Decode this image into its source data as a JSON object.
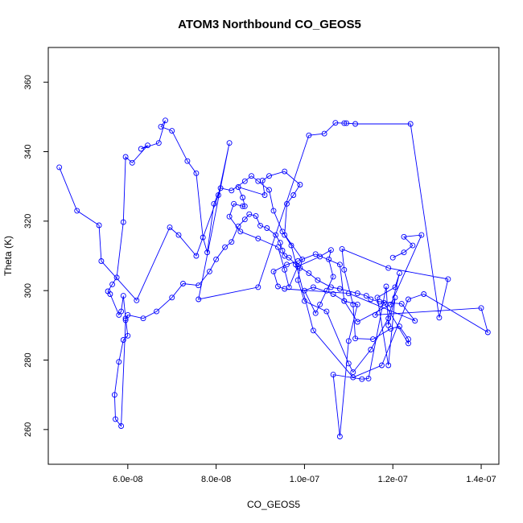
{
  "chart_data": {
    "type": "line",
    "title": "ATOM3 Northbound CO_GEOS5",
    "xlabel": "CO_GEOS5",
    "ylabel": "Theta (K)",
    "xlim": [
      4.2e-08,
      1.44e-07
    ],
    "ylim": [
      250,
      370
    ],
    "xticks": [
      6e-08,
      8e-08,
      1e-07,
      1.2e-07,
      1.4e-07
    ],
    "xtick_labels": [
      "6.0e-08",
      "8.0e-08",
      "1.0e-07",
      "1.2e-07",
      "1.4e-07"
    ],
    "yticks": [
      260,
      280,
      300,
      320,
      340,
      360
    ],
    "ytick_labels": [
      "260",
      "280",
      "300",
      "320",
      "340",
      "360"
    ],
    "grid": false,
    "legend": "none",
    "series": [
      {
        "color": "#0000ff",
        "x": [
          4.45e-08,
          4.85e-08,
          5.35e-08,
          5.4e-08,
          6.2e-08,
          6.95e-08,
          7.15e-08,
          7.55e-08,
          8.05e-08,
          8.3e-08,
          7.6e-08,
          8.95e-08,
          1.01e-07,
          1.045e-07,
          1.07e-07,
          1.09e-07,
          1.095e-07,
          1.115e-07,
          1.24e-07,
          1.305e-07,
          1.325e-07,
          1.19e-07,
          1.085e-07,
          1.09e-07,
          1.11e-07,
          1.115e-07,
          1.155e-07,
          1.195e-07,
          1.215e-07,
          1.235e-07,
          1.235e-07,
          1.18e-07,
          1.16e-07,
          1.4e-07,
          1.415e-07,
          1.27e-07,
          1.235e-07,
          1.175e-07,
          1.11e-07,
          1.02e-07,
          9.7e-08,
          9.55e-08,
          9.6e-08,
          9.75e-08,
          9.9e-08,
          9.55e-08,
          9.2e-08,
          9.05e-08,
          9.1e-08,
          8.5e-08,
          8.6e-08,
          8.65e-08,
          8.6e-08,
          8.4e-08,
          8.3e-08,
          8.55e-08,
          8.95e-08,
          9.4e-08,
          9.55e-08,
          9.65e-08,
          9.85e-08,
          1.035e-07,
          1.06e-07,
          1.055e-07,
          1.065e-07,
          1.05e-07,
          1.035e-07,
          1.025e-07,
          1e-07,
          1.02e-07,
          1.065e-07,
          1.09e-07,
          1.12e-07,
          1.1e-07,
          1.08e-07,
          1.065e-07,
          1.13e-07,
          1.145e-07,
          1.185e-07,
          1.19e-07,
          1.205e-07,
          1.19e-07,
          1.165e-07,
          1.205e-07,
          1.215e-07,
          1.19e-07,
          1.15e-07,
          1.11e-07,
          1.1e-07,
          1.05e-07,
          1e-07,
          9.85e-08,
          9.9e-08,
          9.95e-08,
          9.5e-08,
          9.3e-08,
          9.2e-08,
          8.95e-08,
          8.8e-08,
          8.65e-08,
          8.35e-08,
          8.1e-08,
          7.95e-08,
          7.8e-08,
          7.7e-08,
          7.55e-08,
          7.35e-08,
          7e-08,
          6.75e-08,
          6.85e-08,
          6.7e-08,
          6.3e-08,
          6.45e-08,
          6.1e-08,
          5.95e-08,
          5.9e-08,
          5.75e-08,
          5.65e-08,
          5.55e-08,
          5.6e-08,
          5.8e-08,
          5.85e-08,
          5.9e-08,
          5.95e-08,
          6e-08,
          5.9e-08,
          5.8e-08,
          5.7e-08,
          5.72e-08,
          5.85e-08,
          5.95e-08,
          6e-08,
          6.35e-08,
          6.65e-08,
          7e-08,
          7.25e-08,
          7.6e-08,
          7.85e-08,
          8e-08,
          8.2e-08,
          8.35e-08,
          8.5e-08,
          8.65e-08,
          8.75e-08,
          8.9e-08,
          9e-08,
          9.15e-08,
          9.35e-08,
          9.45e-08,
          9.5e-08,
          9.55e-08,
          9.65e-08,
          9.8e-08,
          1.01e-07,
          1.03e-07,
          1.06e-07,
          1.08e-07,
          1.12e-07,
          1.14e-07,
          1.15e-07,
          1.17e-07,
          1.22e-07,
          1.25e-07,
          1.1e-07,
          9.55e-08,
          9.4e-08,
          9.3e-08,
          9.6e-08,
          9.85e-08,
          1.025e-07,
          1.08e-07,
          1.09e-07,
          1.12e-07,
          1.195e-07,
          1.265e-07,
          1.225e-07,
          1.245e-07,
          1.225e-07,
          1.2e-07
        ],
        "y": [
          335.5,
          323.0,
          318.8,
          308.5,
          297.2,
          318.2,
          316.0,
          310.0,
          327.5,
          342.5,
          297.5,
          301.0,
          344.7,
          345.2,
          348.3,
          348.2,
          348.2,
          348.0,
          348.0,
          292.2,
          303.3,
          306.5,
          312.0,
          306.0,
          296.0,
          286.2,
          286.0,
          289.0,
          289.7,
          286.0,
          284.8,
          296.5,
          293.0,
          295.0,
          288.0,
          299.0,
          297.5,
          278.5,
          275.0,
          288.5,
          313.0,
          316.0,
          325.0,
          327.5,
          330.5,
          334.3,
          333.0,
          331.7,
          327.5,
          329.8,
          326.8,
          324.3,
          324.3,
          325.0,
          321.3,
          317.0,
          315.0,
          312.5,
          306.0,
          301.0,
          307.0,
          309.8,
          311.7,
          309.0,
          304.0,
          300.0,
          296.0,
          293.5,
          300.0,
          301.0,
          299.0,
          297.0,
          296.0,
          285.5,
          258.0,
          275.8,
          274.5,
          274.7,
          301.2,
          290.0,
          298.0,
          278.5,
          298.0,
          301.0,
          305.0,
          292.0,
          283.0,
          276.5,
          279.0,
          294.0,
          297.0,
          303.0,
          306.5,
          309.0,
          317.0,
          323.0,
          329.0,
          331.5,
          333.0,
          331.5,
          328.8,
          329.5,
          325.0,
          311.0,
          315.3,
          333.8,
          337.3,
          346.0,
          347.2,
          349.0,
          342.5,
          340.8,
          341.8,
          336.8,
          338.5,
          319.7,
          303.8,
          301.8,
          299.8,
          299.0,
          293.0,
          294.0,
          298.5,
          292.0,
          287.0,
          285.8,
          279.5,
          270.0,
          263.0,
          261.0,
          291.5,
          293.0,
          292.0,
          294.0,
          298.0,
          302.0,
          301.5,
          305.5,
          309.0,
          312.5,
          314.0,
          318.5,
          320.5,
          322.0,
          321.5,
          318.7,
          318.0,
          316.0,
          313.8,
          311.5,
          310.0,
          309.5,
          307.5,
          305.0,
          303.0,
          301.0,
          300.5,
          299.2,
          298.5,
          297.5,
          296.8,
          296.2,
          291.3,
          299.2,
          300.5,
          301.2,
          305.5,
          307.5,
          308.5,
          310.5,
          307.5,
          297.0,
          291.0,
          296.0,
          316.0,
          315.5,
          313.0,
          311.0,
          309.5
        ]
      }
    ]
  }
}
